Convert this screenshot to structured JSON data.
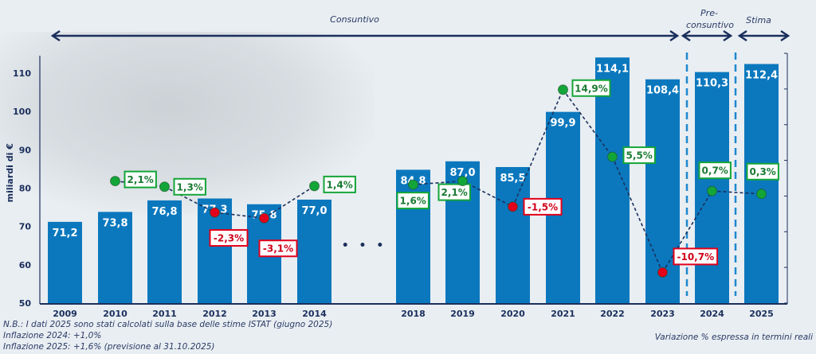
{
  "chart_data": {
    "type": "bar",
    "title": "",
    "xlabel": "",
    "ylabel": "miliardi di €",
    "ylim": [
      50,
      115
    ],
    "yticks": [
      50,
      60,
      70,
      80,
      90,
      100,
      110
    ],
    "y2lim": [
      -15,
      20
    ],
    "grid": false,
    "categories": [
      "2009",
      "2010",
      "2011",
      "2012",
      "2013",
      "2014",
      "2018",
      "2019",
      "2020",
      "2021",
      "2022",
      "2023",
      "2024",
      "2025"
    ],
    "gap_after_index": 5,
    "gap_marker": "• • •",
    "series": [
      {
        "name": "Valore (miliardi di €)",
        "type": "bar",
        "color": "#0b78be",
        "values": [
          71.2,
          73.8,
          76.8,
          77.3,
          75.8,
          77.0,
          84.8,
          87.0,
          85.5,
          99.9,
          114.1,
          108.4,
          110.3,
          112.4
        ],
        "labels": [
          "71,2",
          "73,8",
          "76,8",
          "77,3",
          "75,8",
          "77,0",
          "84,8",
          "87,0",
          "85,5",
          "99,9",
          "114,1",
          "108,4",
          "110,3",
          "112,4"
        ]
      },
      {
        "name": "Variazione % espressa in termini reali",
        "type": "line",
        "axis": "secondary",
        "line_color": "#1b2f5c",
        "values": [
          null,
          2.1,
          1.3,
          -2.3,
          -3.1,
          1.4,
          1.6,
          2.1,
          -1.5,
          14.9,
          5.5,
          -10.7,
          0.7,
          0.3
        ],
        "labels": [
          null,
          "2,1%",
          "1,3%",
          "-2,3%",
          "-3,1%",
          "1,4%",
          "1,6%",
          "2,1%",
          "-1,5%",
          "14,9%",
          "5,5%",
          "-10,7%",
          "0,7%",
          "0,3%"
        ]
      }
    ],
    "colors": {
      "positive": "#13a538",
      "negative": "#e2001a",
      "positive_text": "#1a7a33",
      "negative_text": "#d0001a"
    },
    "periods": [
      {
        "label": "Consuntivo",
        "from": "2009",
        "to": "2023"
      },
      {
        "label": "Pre-\nconsuntivo",
        "line1": "Pre-",
        "line2": "consuntivo",
        "from": "2024",
        "to": "2024"
      },
      {
        "label": "Stima",
        "from": "2025",
        "to": "2025"
      }
    ],
    "annotations": {
      "notes": [
        "N.B.: I dati 2025 sono stati calcolati sulla base delle stime ISTAT (giugno 2025)",
        "Inflazione 2024: +1,0%",
        "Inflazione 2025: +1,6% (previsione al 31.10.2025)"
      ],
      "footnote": "Variazione % espressa in termini reali"
    }
  }
}
